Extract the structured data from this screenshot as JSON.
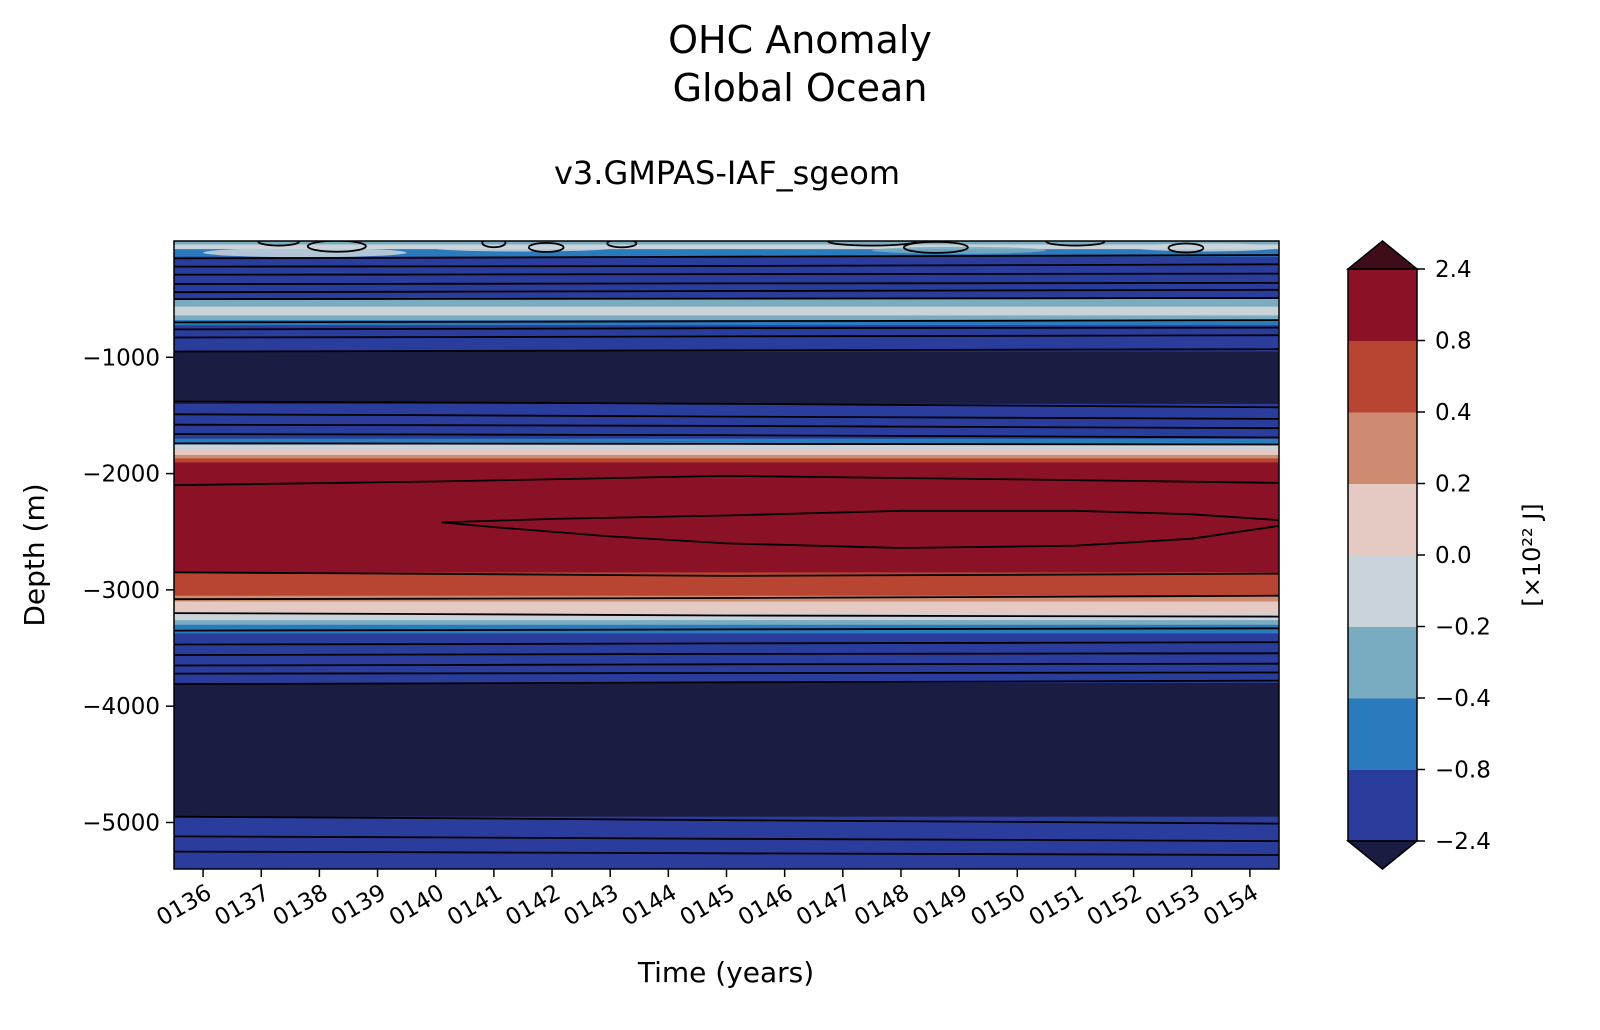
{
  "chart_data": {
    "type": "contour",
    "title": "OHC Anomaly",
    "title_line2": "Global Ocean",
    "subtitle": "v3.GMPAS-IAF_sgeom",
    "xlabel": "Time (years)",
    "ylabel": "Depth (m)",
    "x_ticks": [
      "0136",
      "0137",
      "0138",
      "0139",
      "0140",
      "0141",
      "0142",
      "0143",
      "0144",
      "0145",
      "0146",
      "0147",
      "0148",
      "0149",
      "0150",
      "0151",
      "0152",
      "0153",
      "0154"
    ],
    "x_range": [
      "0135.5",
      "0154.5"
    ],
    "y_ticks": [
      -1000,
      -2000,
      -3000,
      -4000,
      -5000
    ],
    "ylim": [
      -5400,
      0
    ],
    "colorbar": {
      "label": "[×10²² J]",
      "extend": "both",
      "levels": [
        -2.4,
        -0.8,
        -0.4,
        -0.2,
        0.0,
        0.2,
        0.4,
        0.8,
        2.4
      ],
      "tick_labels": [
        "−2.4",
        "−0.8",
        "−0.4",
        "−0.2",
        "0.0",
        "0.2",
        "0.4",
        "0.8",
        "2.4"
      ],
      "colors": [
        "#2a3d9c",
        "#2a7bbd",
        "#79abc1",
        "#cad3d9",
        "#e4cac3",
        "#cf8b72",
        "#b74531",
        "#8a1126"
      ],
      "under_color": "#1b1c42",
      "over_color": "#3f0d18"
    },
    "bands": [
      {
        "top": 0,
        "bottom": -100,
        "value": "-0.4 to 0.2"
      },
      {
        "top": -100,
        "bottom": -500,
        "value": "-2.4 to -0.4"
      },
      {
        "top": -500,
        "bottom": -650,
        "value": "-0.2 to 0.0"
      },
      {
        "top": -650,
        "bottom": -950,
        "value": "-2.4 to -0.4"
      },
      {
        "top": -950,
        "bottom": -1400,
        "value": "< -2.4"
      },
      {
        "top": -1400,
        "bottom": -1750,
        "value": "-2.4 to -0.8"
      },
      {
        "top": -1750,
        "bottom": -1900,
        "value": "-0.4 to 0.8"
      },
      {
        "top": -1900,
        "bottom": -2850,
        "value": "> 0.8"
      },
      {
        "top": -2850,
        "bottom": -3150,
        "value": "0.2 to 0.8"
      },
      {
        "top": -3150,
        "bottom": -3350,
        "value": "-0.4 to 0.2"
      },
      {
        "top": -3350,
        "bottom": -3800,
        "value": "-2.4 to -0.8"
      },
      {
        "top": -3800,
        "bottom": -4950,
        "value": "< -2.4"
      },
      {
        "top": -4950,
        "bottom": -5400,
        "value": "-2.4 to -0.8"
      }
    ]
  }
}
